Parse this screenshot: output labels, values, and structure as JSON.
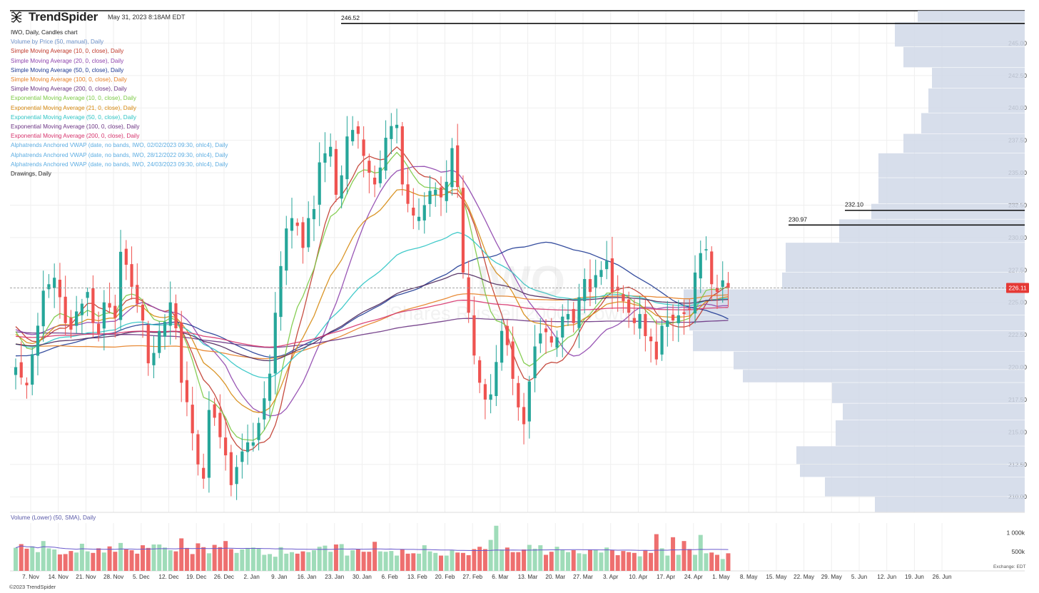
{
  "header": {
    "brand": "TrendSpider",
    "timestamp": "May 31, 2023 8:18AM EDT",
    "chart_title": "IWO, Daily, Candles chart"
  },
  "legend": [
    {
      "label": "Volume by Price (50, manual), Daily",
      "color": "#6a8fc7"
    },
    {
      "label": "Simple Moving Average (10, 0, close), Daily",
      "color": "#c0392b"
    },
    {
      "label": "Simple Moving Average (20, 0, close), Daily",
      "color": "#8e44ad"
    },
    {
      "label": "Simple Moving Average (50, 0, close), Daily",
      "color": "#1f3a93"
    },
    {
      "label": "Simple Moving Average (100, 0, close), Daily",
      "color": "#e67e22"
    },
    {
      "label": "Simple Moving Average (200, 0, close), Daily",
      "color": "#6c3483"
    },
    {
      "label": "Exponential Moving Average (10, 0, close), Daily",
      "color": "#7ac943"
    },
    {
      "label": "Exponential Moving Average (21, 0, close), Daily",
      "color": "#d68910"
    },
    {
      "label": "Exponential Moving Average (50, 0, close), Daily",
      "color": "#2ec4c4"
    },
    {
      "label": "Exponential Moving Average (100, 0, close), Daily",
      "color": "#6c3483"
    },
    {
      "label": "Exponential Moving Average (200, 0, close), Daily",
      "color": "#d6336c"
    },
    {
      "label": "Alphatrends Anchored VWAP (date, no bands, IWO, 02/02/2023 09:30, ohlc4), Daily",
      "color": "#5dade2"
    },
    {
      "label": "Alphatrends Anchored VWAP (date, no bands, IWO, 28/12/2022 09:30, ohlc4), Daily",
      "color": "#5dade2"
    },
    {
      "label": "Alphatrends Anchored VWAP (date, no bands, IWO, 24/03/2023 09:30, ohlc4), Daily",
      "color": "#5dade2"
    },
    {
      "label": "Drawings, Daily",
      "color": "#222222"
    }
  ],
  "watermark": {
    "ticker": "IWO",
    "name": "iShares Russell 2000 Growth ETF"
  },
  "volume_panel": {
    "title": "Volume (Lower) (50, SMA), Daily"
  },
  "exchange_note": "Exchange: EDT",
  "copyright": "©2023 TrendSpider",
  "colors": {
    "up": "#26a69a",
    "down": "#ef5350",
    "up_vol": "#9fdcb9",
    "down_vol": "#ee6f6f",
    "vbp": "#d0d8e8"
  },
  "chart_data": {
    "type": "candlestick",
    "ticker": "IWO",
    "timeframe": "Daily",
    "price_axis": {
      "min": 208.8,
      "max": 247.5,
      "ticks": [
        "210.00",
        "212.50",
        "215.00",
        "217.50",
        "220.00",
        "222.50",
        "225.00",
        "227.50",
        "230.00",
        "232.50",
        "235.00",
        "237.50",
        "240.00",
        "242.50",
        "245.00"
      ]
    },
    "x_tick_labels": [
      "7. Nov",
      "14. Nov",
      "21. Nov",
      "28. Nov",
      "5. Dec",
      "12. Dec",
      "19. Dec",
      "26. Dec",
      "2. Jan",
      "9. Jan",
      "16. Jan",
      "23. Jan",
      "30. Jan",
      "6. Feb",
      "13. Feb",
      "20. Feb",
      "27. Feb",
      "6. Mar",
      "13. Mar",
      "20. Mar",
      "27. Mar",
      "3. Apr",
      "10. Apr",
      "17. Apr",
      "24. Apr",
      "1. May",
      "8. May",
      "15. May",
      "22. May",
      "29. May",
      "5. Jun",
      "12. Jun",
      "19. Jun",
      "26. Jun"
    ],
    "current_price": "226.11",
    "horizontal_levels": [
      {
        "label": "246.52",
        "value": 246.52
      },
      {
        "label": "232.10",
        "value": 232.1
      },
      {
        "label": "230.97",
        "value": 230.97
      }
    ],
    "volume_axis_ticks": [
      "1 000k",
      "500k"
    ],
    "closes": [
      220.0,
      219.2,
      218.6,
      221.0,
      223.2,
      225.9,
      226.4,
      226.9,
      225.4,
      223.4,
      222.9,
      224.3,
      224.9,
      225.8,
      223.4,
      222.6,
      225.0,
      224.6,
      223.8,
      228.9,
      227.9,
      226.2,
      224.9,
      223.6,
      220.3,
      221.1,
      222.8,
      223.5,
      225.0,
      223.0,
      218.8,
      217.3,
      214.9,
      212.5,
      211.4,
      216.7,
      216.1,
      214.6,
      213.2,
      210.9,
      212.3,
      213.5,
      214.2,
      214.2,
      215.7,
      217.6,
      219.5,
      224.2,
      227.8,
      230.7,
      231.5,
      230.9,
      229.2,
      231.5,
      232.2,
      235.8,
      236.5,
      237.0,
      233.3,
      234.8,
      237.8,
      238.3,
      238.0,
      236.3,
      235.0,
      234.1,
      235.4,
      237.7,
      238.6,
      238.7,
      234.1,
      232.6,
      231.7,
      231.6,
      232.5,
      233.6,
      233.7,
      233.1,
      234.3,
      236.9,
      233.9,
      227.3,
      224.2,
      220.9,
      218.8,
      217.5,
      217.9,
      220.4,
      222.8,
      221.7,
      219.1,
      216.9,
      215.6,
      218.9,
      221.6,
      222.6,
      222.7,
      221.9,
      222.3,
      223.9,
      224.1,
      223.4,
      225.4,
      226.8,
      225.8,
      227.1,
      227.5,
      228.2,
      225.8,
      225.9,
      225.1,
      224.2,
      223.4,
      224.1,
      222.4,
      222.0,
      220.6,
      223.2,
      223.6,
      223.6,
      224.0,
      224.1,
      224.5,
      227.3,
      228.8,
      229.1,
      226.4,
      225.8,
      226.7,
      226.1
    ],
    "volumes_k": [
      605,
      700,
      580,
      640,
      490,
      780,
      590,
      560,
      430,
      440,
      520,
      480,
      710,
      510,
      470,
      590,
      480,
      640,
      500,
      730,
      560,
      540,
      450,
      670,
      600,
      690,
      690,
      610,
      540,
      510,
      850,
      600,
      440,
      720,
      620,
      460,
      680,
      620,
      780,
      570,
      470,
      560,
      600,
      610,
      580,
      420,
      440,
      370,
      620,
      450,
      490,
      450,
      510,
      490,
      540,
      630,
      660,
      500,
      690,
      700,
      400,
      540,
      570,
      500,
      500,
      760,
      510,
      500,
      520,
      400,
      560,
      450,
      460,
      450,
      670,
      510,
      470,
      400,
      400,
      540,
      480,
      470,
      410,
      570,
      630,
      570,
      810,
      1180,
      560,
      610,
      490,
      490,
      560,
      680,
      580,
      670,
      420,
      500,
      630,
      550,
      490,
      540,
      460,
      440,
      550,
      560,
      480,
      610,
      540,
      410,
      520,
      490,
      470,
      380,
      530,
      470,
      960,
      590,
      400,
      880,
      420,
      780,
      570,
      420,
      940,
      460,
      480,
      420,
      310,
      460
    ],
    "moving_averages": [
      {
        "name": "SMA 10",
        "period": 10,
        "kind": "sma"
      },
      {
        "name": "SMA 20",
        "period": 20,
        "kind": "sma"
      },
      {
        "name": "SMA 50",
        "period": 50,
        "kind": "sma"
      },
      {
        "name": "SMA 100",
        "period": 100,
        "kind": "sma"
      },
      {
        "name": "SMA 200",
        "period": 200,
        "kind": "sma"
      },
      {
        "name": "EMA 10",
        "period": 10,
        "kind": "ema"
      },
      {
        "name": "EMA 21",
        "period": 21,
        "kind": "ema"
      },
      {
        "name": "EMA 50",
        "period": 50,
        "kind": "ema"
      },
      {
        "name": "EMA 100",
        "period": 100,
        "kind": "ema"
      },
      {
        "name": "EMA 200",
        "period": 200,
        "kind": "ema"
      }
    ],
    "volume_by_price_k": [
      {
        "lo": 208.8,
        "hi": 210.0,
        "v": 210
      },
      {
        "lo": 210.0,
        "hi": 211.5,
        "v": 280
      },
      {
        "lo": 211.5,
        "hi": 212.5,
        "v": 315
      },
      {
        "lo": 212.5,
        "hi": 213.9,
        "v": 320
      },
      {
        "lo": 213.9,
        "hi": 215.9,
        "v": 265
      },
      {
        "lo": 215.9,
        "hi": 217.2,
        "v": 255
      },
      {
        "lo": 217.2,
        "hi": 218.8,
        "v": 270
      },
      {
        "lo": 218.8,
        "hi": 219.8,
        "v": 395
      },
      {
        "lo": 219.8,
        "hi": 221.2,
        "v": 408
      },
      {
        "lo": 221.2,
        "hi": 222.8,
        "v": 465
      },
      {
        "lo": 222.8,
        "hi": 224.0,
        "v": 470
      },
      {
        "lo": 224.0,
        "hi": 226.0,
        "v": 478
      },
      {
        "lo": 226.0,
        "hi": 227.3,
        "v": 340
      },
      {
        "lo": 227.3,
        "hi": 229.6,
        "v": 335
      },
      {
        "lo": 229.6,
        "hi": 231.4,
        "v": 260
      },
      {
        "lo": 231.4,
        "hi": 232.6,
        "v": 215
      },
      {
        "lo": 232.6,
        "hi": 234.6,
        "v": 205
      },
      {
        "lo": 234.6,
        "hi": 236.5,
        "v": 205
      },
      {
        "lo": 236.5,
        "hi": 238.0,
        "v": 170
      },
      {
        "lo": 238.0,
        "hi": 239.6,
        "v": 145
      },
      {
        "lo": 239.6,
        "hi": 241.5,
        "v": 135
      },
      {
        "lo": 241.5,
        "hi": 243.1,
        "v": 130
      },
      {
        "lo": 243.1,
        "hi": 244.7,
        "v": 170
      },
      {
        "lo": 244.7,
        "hi": 246.6,
        "v": 182
      },
      {
        "lo": 246.6,
        "hi": 247.5,
        "v": 150
      }
    ]
  }
}
